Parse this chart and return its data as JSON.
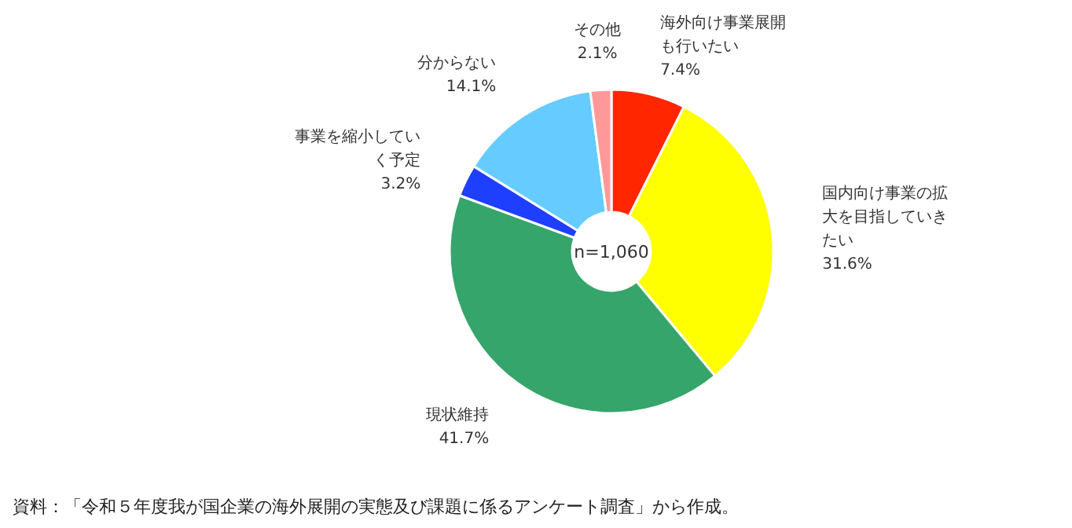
{
  "chart_data": {
    "type": "donut",
    "categories": [
      "海外向け事業展開も行いたい",
      "国内向け事業の拡大を目指していきたい",
      "現状維持",
      "事業を縮小していく予定",
      "分からない",
      "その他"
    ],
    "values": [
      7.4,
      31.6,
      41.7,
      3.2,
      14.1,
      2.1
    ],
    "value_labels": [
      "7.4%",
      "31.6%",
      "41.7%",
      "3.2%",
      "14.1%",
      "2.1%"
    ],
    "colors": [
      "#ff2600",
      "#ffff00",
      "#36a56b",
      "#1f3fff",
      "#66ccff",
      "#ff9999"
    ],
    "annotations": [
      "n=1,060",
      "資料：「令和５年度我が国企業の海外展開の実態及び課題に係るアンケート調査」から作成。"
    ]
  }
}
